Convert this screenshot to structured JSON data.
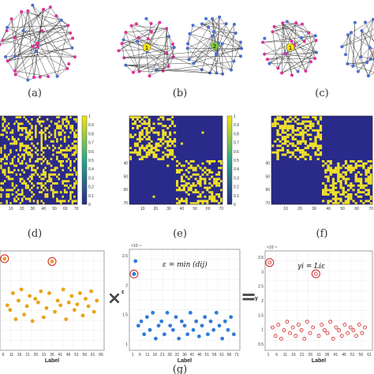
{
  "figure": {
    "panel_labels": [
      "(a)",
      "(b)",
      "(c)",
      "(d)",
      "(e)",
      "(f)",
      "(g)"
    ],
    "community_labels": [
      "1",
      "2"
    ],
    "operators": {
      "times": "×",
      "equals": "="
    },
    "colors": {
      "node_magenta": "#e0309a",
      "node_blue": "#4a6fd0",
      "community_yellow": "#f5e60a",
      "community_green": "#7ccf3a",
      "edge": "#333333",
      "matrix_bg": "#2a2a8a",
      "matrix_on": "#f2e12a",
      "colorbar_top": "#f5e60a",
      "colorbar_bottom": "#2a2a8a",
      "series_orange": "#e8a317",
      "series_blue": "#2f7bd8",
      "series_red": "#d22020",
      "highlight": "#d22020"
    }
  },
  "adjacency": {
    "colorbar_ticks": [
      "1",
      "0.9",
      "0.8",
      "0.7",
      "0.6",
      "0.5",
      "0.4",
      "0.3",
      "0.2",
      "0.1",
      "0"
    ],
    "y_ticks": [
      "40",
      "50",
      "60",
      "70"
    ],
    "x_ticks": [
      "10",
      "20",
      "30",
      "40",
      "50",
      "60",
      "70"
    ]
  },
  "scatter": {
    "xlabel": "Label",
    "left_x_ticks": [
      "6",
      "11",
      "16",
      "21",
      "26",
      "31",
      "36",
      "41",
      "46",
      "51",
      "56",
      "61",
      "66"
    ],
    "mid_x_ticks": [
      "1",
      "6",
      "11",
      "16",
      "21",
      "26",
      "31",
      "36",
      "41",
      "46",
      "51",
      "56",
      "61",
      "66",
      "71"
    ],
    "right_x_ticks": [
      "1",
      "6",
      "11",
      "16",
      "21",
      "26",
      "31",
      "36",
      "41",
      "46",
      "51",
      "56",
      "61"
    ],
    "mid_y_ticks": [
      "2.5",
      "2",
      "1.5",
      "1"
    ],
    "mid_exponent": "×10⁻⁴",
    "right_y_ticks": [
      "3.5",
      "3",
      "2.5",
      "2",
      "1.5",
      "1",
      "0.5"
    ],
    "right_exponent": "×10⁻⁴",
    "mid_ylabel": "ε",
    "right_ylabel": "γ",
    "mid_formula": "ε = min (dij)",
    "right_formula": "γi = Liε"
  },
  "chart_data": [
    {
      "type": "scatter",
      "xlabel": "Label",
      "ylabel": "",
      "x": [
        1,
        3,
        5,
        7,
        9,
        11,
        13,
        15,
        17,
        19,
        21,
        23,
        25,
        27,
        29,
        31,
        33,
        35,
        37,
        39,
        41,
        43,
        45,
        47,
        49,
        51,
        53,
        55,
        57,
        59,
        61,
        63,
        65,
        67
      ],
      "y": [
        0.95,
        0.45,
        0.4,
        0.58,
        0.3,
        0.5,
        0.62,
        0.35,
        0.44,
        0.55,
        0.28,
        0.52,
        0.48,
        0.6,
        0.32,
        0.42,
        0.58,
        0.92,
        0.38,
        0.5,
        0.45,
        0.62,
        0.3,
        0.48,
        0.55,
        0.4,
        0.46,
        0.58,
        0.34,
        0.52,
        0.44,
        0.6,
        0.38,
        0.5
      ]
    },
    {
      "type": "scatter",
      "xlabel": "Label",
      "ylabel": "ε",
      "x": [
        1,
        2,
        4,
        6,
        8,
        10,
        12,
        14,
        16,
        18,
        20,
        22,
        24,
        26,
        28,
        30,
        32,
        34,
        36,
        38,
        40,
        42,
        44,
        46,
        48,
        50,
        52,
        54,
        56,
        58,
        60,
        62,
        64,
        66,
        68,
        70
      ],
      "y": [
        2.4,
        2.7,
        1.2,
        1.3,
        1.0,
        1.4,
        1.1,
        1.5,
        0.9,
        1.2,
        1.3,
        1.0,
        1.5,
        1.2,
        1.1,
        1.4,
        0.9,
        1.3,
        1.2,
        1.0,
        1.5,
        1.1,
        1.3,
        0.95,
        1.2,
        1.4,
        1.0,
        1.3,
        1.1,
        1.5,
        1.2,
        0.9,
        1.3,
        1.1,
        1.4,
        1.0
      ],
      "ylim": [
        0.7,
        2.9
      ]
    },
    {
      "type": "scatter",
      "xlabel": "Label",
      "ylabel": "γ",
      "x": [
        1,
        3,
        5,
        7,
        9,
        11,
        13,
        15,
        17,
        19,
        21,
        23,
        25,
        27,
        29,
        31,
        33,
        35,
        37,
        39,
        41,
        43,
        45,
        47,
        49,
        51,
        53,
        55,
        57,
        59,
        61,
        63,
        65,
        67
      ],
      "y": [
        3.4,
        1.1,
        0.8,
        1.2,
        0.7,
        1.0,
        1.3,
        0.9,
        1.1,
        0.8,
        1.2,
        1.0,
        0.7,
        1.3,
        0.9,
        1.1,
        3.0,
        0.8,
        1.2,
        1.0,
        0.9,
        1.3,
        0.7,
        1.1,
        1.0,
        0.8,
        1.2,
        0.9,
        1.1,
        1.0,
        0.8,
        1.2,
        0.9,
        1.1
      ],
      "ylim": [
        0.4,
        3.7
      ]
    }
  ]
}
